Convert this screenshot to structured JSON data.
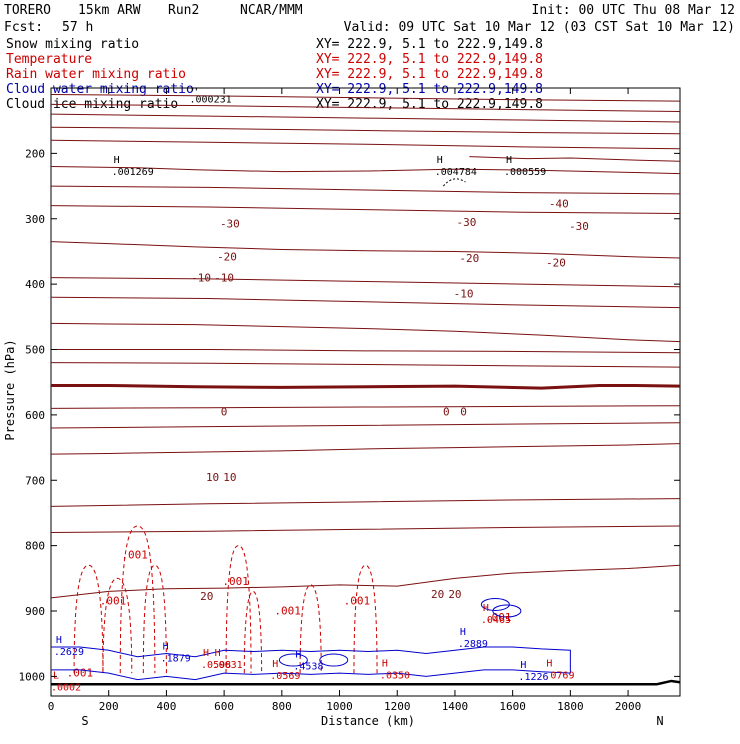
{
  "header": {
    "model": "TORERO",
    "grid": "15km ARW",
    "run": "Run2",
    "org": "NCAR/MMM",
    "init": "Init: 00 UTC Thu 08 Mar 12",
    "fcst_label": "Fcst:",
    "fcst_value": "57 h",
    "valid": "Valid: 09 UTC Sat 10 Mar 12 (03 CST Sat 10 Mar 12)"
  },
  "legend": [
    {
      "name": "Snow mixing ratio",
      "xy": "XY= 222.9,  5.1 to 222.9,149.8",
      "color": "#000000"
    },
    {
      "name": "Temperature",
      "xy": "XY= 222.9,  5.1 to 222.9,149.8",
      "color": "#cc0000"
    },
    {
      "name": "Rain water mixing ratio",
      "xy": "XY= 222.9,  5.1 to 222.9,149.8",
      "color": "#cc0000"
    },
    {
      "name": "Cloud water mixing ratio",
      "xy": "XY= 222.9,  5.1 to 222.9,149.8",
      "color": "#0000aa"
    },
    {
      "name": "Cloud ice mixing ratio",
      "xy": "XY= 222.9,  5.1 to 222.9,149.8",
      "color": "#000000"
    }
  ],
  "colors": {
    "temperature": "#7a1010",
    "freezing": "#7a1010",
    "rain": "#cc0000",
    "cloud_water": "#0000cc",
    "snow": "#000000"
  },
  "chart_data": {
    "type": "cross-section contour",
    "xlabel": "Distance (km)",
    "ylabel": "Pressure (hPa)",
    "xlim": [
      0,
      2180
    ],
    "ylim": [
      1030,
      100
    ],
    "x_ticks": [
      "0",
      "200",
      "400",
      "600",
      "800",
      "1000",
      "1200",
      "1400",
      "1600",
      "1800",
      "2000"
    ],
    "x_tick_values": [
      0,
      200,
      400,
      600,
      800,
      1000,
      1200,
      1400,
      1600,
      1800,
      2000
    ],
    "y_ticks": [
      "200",
      "300",
      "400",
      "500",
      "600",
      "700",
      "800",
      "900",
      "1000"
    ],
    "y_tick_values": [
      200,
      300,
      400,
      500,
      600,
      700,
      800,
      900,
      1000
    ],
    "left_end": "S",
    "right_end": "N",
    "temperature_contours": [
      {
        "label": "-30",
        "points": [
          [
            0,
            220
          ],
          [
            300,
            222
          ],
          [
            500,
            225
          ],
          [
            800,
            228
          ],
          [
            1100,
            227
          ],
          [
            1400,
            224
          ],
          [
            1700,
            226
          ],
          [
            2000,
            229
          ],
          [
            2180,
            231
          ]
        ],
        "label_positions": [
          [
            620,
            307
          ],
          [
            1440,
            305
          ],
          [
            1830,
            311
          ]
        ]
      },
      {
        "label": "-20",
        "points": [
          [
            0,
            335
          ],
          [
            200,
            338
          ],
          [
            500,
            343
          ],
          [
            800,
            347
          ],
          [
            1100,
            349
          ],
          [
            1400,
            350
          ],
          [
            1700,
            353
          ],
          [
            2000,
            358
          ],
          [
            2180,
            360
          ]
        ],
        "label_positions": [
          [
            610,
            358
          ],
          [
            1450,
            360
          ],
          [
            1750,
            367
          ]
        ]
      },
      {
        "label": "-40",
        "points": [
          [
            1450,
            205
          ],
          [
            1650,
            208
          ],
          [
            1800,
            207
          ],
          [
            2000,
            210
          ],
          [
            2180,
            212
          ]
        ],
        "label_positions": [
          [
            1760,
            277
          ]
        ]
      },
      {
        "label": "-10",
        "points": [
          [
            0,
            460
          ],
          [
            200,
            461
          ],
          [
            500,
            462
          ],
          [
            800,
            465
          ],
          [
            1100,
            468
          ],
          [
            1400,
            472
          ],
          [
            1700,
            478
          ],
          [
            2000,
            485
          ],
          [
            2180,
            488
          ]
        ],
        "label_positions": [
          [
            520,
            390
          ],
          [
            600,
            390
          ],
          [
            1430,
            414
          ]
        ]
      },
      {
        "label": "0",
        "points": [
          [
            0,
            555
          ],
          [
            200,
            555
          ],
          [
            500,
            557
          ],
          [
            800,
            558
          ],
          [
            1100,
            557
          ],
          [
            1400,
            556
          ],
          [
            1700,
            559
          ],
          [
            1900,
            555
          ],
          [
            2000,
            555
          ],
          [
            2180,
            556
          ]
        ],
        "label_positions": [
          [
            600,
            595
          ],
          [
            1370,
            595
          ],
          [
            1430,
            595
          ]
        ]
      },
      {
        "label": "10",
        "points": [
          [
            0,
            660
          ],
          [
            200,
            659
          ],
          [
            500,
            657
          ],
          [
            800,
            655
          ],
          [
            1100,
            652
          ],
          [
            1400,
            650
          ],
          [
            1700,
            648
          ],
          [
            2000,
            646
          ],
          [
            2180,
            644
          ]
        ],
        "label_positions": [
          [
            560,
            695
          ],
          [
            620,
            695
          ]
        ]
      },
      {
        "label": "20",
        "points": [
          [
            0,
            880
          ],
          [
            200,
            870
          ],
          [
            400,
            866
          ],
          [
            600,
            865
          ],
          [
            800,
            863
          ],
          [
            1000,
            860
          ],
          [
            1200,
            862
          ],
          [
            1400,
            850
          ],
          [
            1600,
            842
          ],
          [
            1800,
            838
          ],
          [
            2000,
            835
          ],
          [
            2180,
            830
          ]
        ],
        "label_positions": [
          [
            540,
            877
          ],
          [
            1340,
            874
          ],
          [
            1400,
            874
          ]
        ]
      }
    ],
    "rain_label": ".001",
    "maxima": [
      {
        "label": "H",
        "value": ".000231",
        "x": 480,
        "p": 107
      },
      {
        "label": "H",
        "value": ".001269",
        "x": 210,
        "p": 218
      },
      {
        "label": "H",
        "value": ".004784",
        "x": 1330,
        "p": 218
      },
      {
        "label": "H",
        "value": ".000559",
        "x": 1570,
        "p": 218
      },
      {
        "label": "H",
        "value": ".2629",
        "x": 10,
        "p": 952
      },
      {
        "label": "H",
        "value": ".1879",
        "x": 380,
        "p": 962
      },
      {
        "label": "H",
        "value": ".0598",
        "x": 520,
        "p": 972
      },
      {
        "label": "H",
        "value": ".0631",
        "x": 560,
        "p": 972
      },
      {
        "label": "H",
        "value": ".4538",
        "x": 840,
        "p": 974
      },
      {
        "label": "H",
        "value": ".0569",
        "x": 760,
        "p": 989
      },
      {
        "label": "H",
        "value": ".0350",
        "x": 1140,
        "p": 988
      },
      {
        "label": "H",
        "value": ".2889",
        "x": 1410,
        "p": 940
      },
      {
        "label": "H",
        "value": ".0465",
        "x": 1490,
        "p": 903
      },
      {
        "label": "H",
        "value": ".1226",
        "x": 1620,
        "p": 990
      },
      {
        "label": "H",
        "value": ".0769",
        "x": 1710,
        "p": 988
      },
      {
        "label": "L",
        "value": ".0002",
        "x": 0,
        "p": 1006
      }
    ]
  }
}
